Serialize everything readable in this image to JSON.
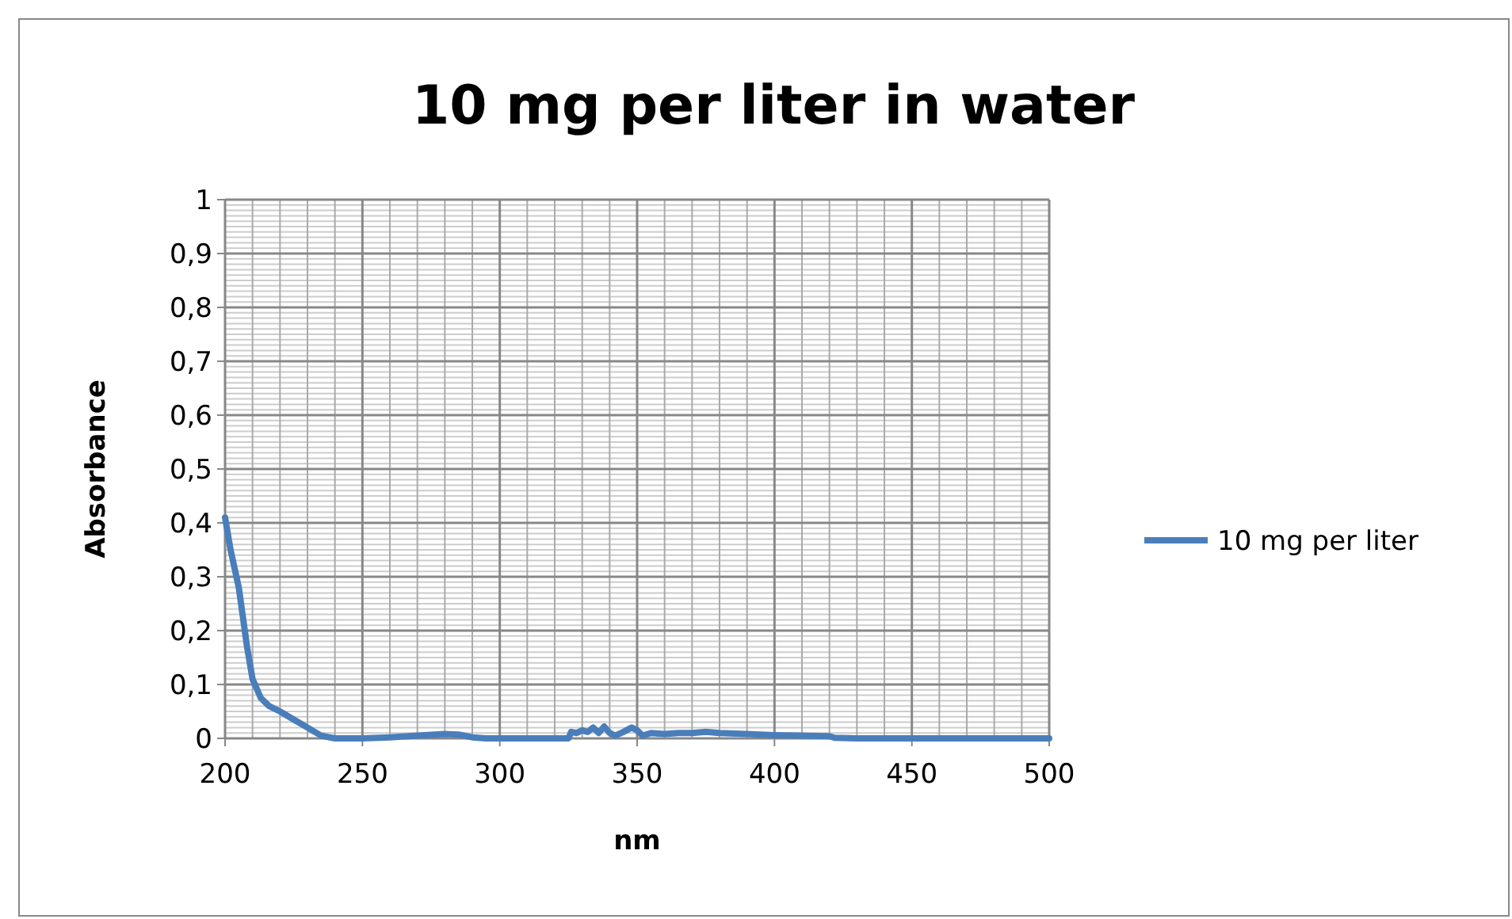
{
  "chart_data": {
    "type": "line",
    "title": "10 mg per liter in water",
    "xlabel": "nm",
    "ylabel": "Absorbance",
    "x": [
      200,
      202,
      205,
      208,
      210,
      213,
      216,
      220,
      225,
      230,
      235,
      240,
      250,
      260,
      270,
      280,
      285,
      290,
      295,
      300,
      325,
      326,
      328,
      330,
      332,
      334,
      336,
      338,
      340,
      342,
      345,
      348,
      350,
      352,
      355,
      360,
      365,
      370,
      375,
      380,
      390,
      400,
      410,
      420,
      422,
      430,
      500
    ],
    "series": [
      {
        "name": "10 mg per liter",
        "color": "#4a7ebb",
        "values": [
          0.41,
          0.35,
          0.28,
          0.17,
          0.11,
          0.075,
          0.06,
          0.05,
          0.035,
          0.02,
          0.005,
          0,
          0,
          0.002,
          0.005,
          0.008,
          0.007,
          0.002,
          0,
          0,
          0,
          0.012,
          0.01,
          0.015,
          0.012,
          0.02,
          0.01,
          0.022,
          0.01,
          0.005,
          0.012,
          0.02,
          0.015,
          0.005,
          0.01,
          0.008,
          0.01,
          0.01,
          0.012,
          0.01,
          0.008,
          0.006,
          0.005,
          0.004,
          0.001,
          0,
          0
        ]
      }
    ],
    "xlim": [
      200,
      500
    ],
    "xticks": [
      200,
      250,
      300,
      350,
      400,
      450,
      500
    ],
    "ylim": [
      0,
      1
    ],
    "yticks": [
      {
        "value": 0,
        "label": "0"
      },
      {
        "value": 0.1,
        "label": "0,1"
      },
      {
        "value": 0.2,
        "label": "0,2"
      },
      {
        "value": 0.3,
        "label": "0,3"
      },
      {
        "value": 0.4,
        "label": "0,4"
      },
      {
        "value": 0.5,
        "label": "0,5"
      },
      {
        "value": 0.6,
        "label": "0,6"
      },
      {
        "value": 0.7,
        "label": "0,7"
      },
      {
        "value": 0.8,
        "label": "0,8"
      },
      {
        "value": 0.9,
        "label": "0,9"
      },
      {
        "value": 1,
        "label": "1"
      }
    ],
    "grid": true,
    "legend": "right",
    "marker": "none",
    "line_style": "solid"
  }
}
